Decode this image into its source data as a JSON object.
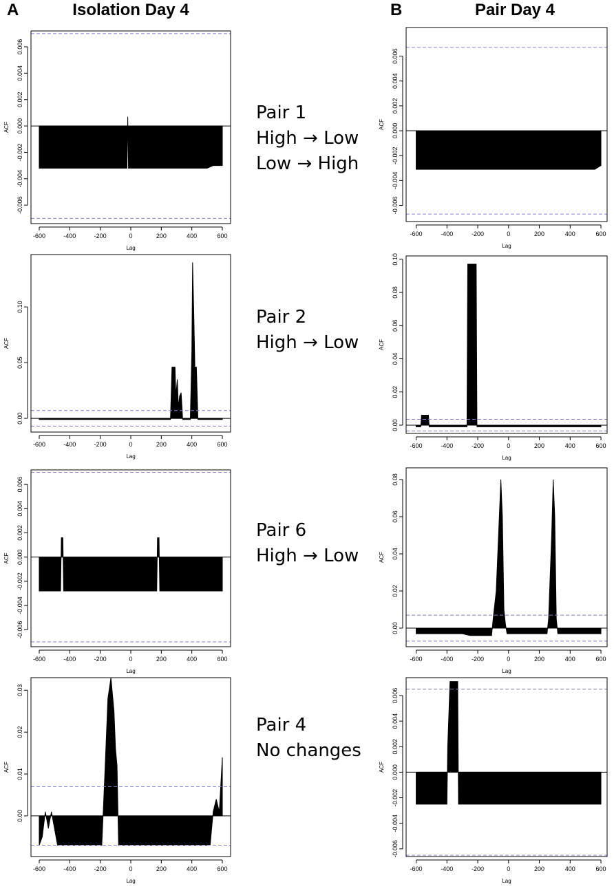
{
  "figure": {
    "panel_labels": [
      "A",
      "B"
    ],
    "column_titles": [
      "Isolation Day 4",
      "Pair Day 4"
    ],
    "annotations": [
      [
        "Pair 1",
        "High → Low",
        "Low → High"
      ],
      [
        "Pair 2",
        "High → Low"
      ],
      [
        "Pair 6",
        "High → Low"
      ],
      [
        "Pair 4",
        "No changes"
      ]
    ]
  },
  "chart_data": [
    {
      "type": "area",
      "x_label": "Lag",
      "y_label": "ACF",
      "color": "#000000",
      "ci_color": "#8080d0",
      "confidence_bound": 0.007,
      "x": [
        -600,
        -25,
        -20,
        -15,
        500,
        540,
        600
      ],
      "values": [
        -0.0032,
        -0.0032,
        0.0007,
        -0.0032,
        -0.0032,
        -0.003,
        -0.003
      ],
      "xlim": [
        -654,
        654
      ],
      "ylim": [
        -0.0074,
        0.0072
      ],
      "xticks": [
        -600,
        -400,
        -200,
        0,
        200,
        400,
        600
      ],
      "yticks": [
        -0.006,
        -0.004,
        -0.002,
        {
          "value": 0,
          "label": "0.000"
        },
        0.002,
        0.004,
        0.006
      ]
    },
    {
      "type": "area",
      "x_label": "Lag",
      "y_label": "ACF",
      "color": "#000000",
      "ci_color": "#8080d0",
      "confidence_bound": 0.007,
      "x": [
        -600,
        260,
        270,
        290,
        295,
        305,
        312,
        320,
        330,
        340,
        390,
        400,
        405,
        412,
        420,
        430,
        440,
        600
      ],
      "values": [
        -0.001,
        -0.001,
        0.046,
        0.046,
        0.02,
        0.035,
        0.01,
        0.02,
        0.023,
        -0.001,
        -0.001,
        0.06,
        0.14,
        0.1,
        0.046,
        0.046,
        -0.001,
        -0.001
      ],
      "xlim": [
        -654,
        654
      ],
      "ylim": [
        -0.0123,
        0.147
      ],
      "xticks": [
        -600,
        -400,
        -200,
        0,
        200,
        400,
        600
      ],
      "yticks": [
        {
          "value": 0,
          "label": "0.00"
        },
        0.05,
        {
          "value": 0.1,
          "label": "0.10"
        }
      ]
    },
    {
      "type": "area",
      "x_label": "Lag",
      "y_label": "ACF",
      "color": "#000000",
      "ci_color": "#8080d0",
      "confidence_bound": 0.007,
      "x": [
        -600,
        -460,
        -455,
        -445,
        -440,
        170,
        175,
        185,
        190,
        600
      ],
      "values": [
        -0.0028,
        -0.0028,
        0.0016,
        0.0016,
        -0.0028,
        -0.0028,
        0.0016,
        0.0016,
        -0.0028,
        -0.0028
      ],
      "xlim": [
        -654,
        654
      ],
      "ylim": [
        -0.0074,
        0.0072
      ],
      "xticks": [
        -600,
        -400,
        -200,
        0,
        200,
        400,
        600
      ],
      "yticks": [
        -0.006,
        -0.004,
        -0.002,
        {
          "value": 0,
          "label": "0.000"
        },
        0.002,
        0.004,
        0.006
      ]
    },
    {
      "type": "area",
      "x_label": "Lag",
      "y_label": "ACF",
      "color": "#000000",
      "ci_color": "#8080d0",
      "confidence_bound": 0.007,
      "x": [
        -600,
        -580,
        -560,
        -540,
        -520,
        -500,
        -480,
        -190,
        -170,
        -150,
        -130,
        -110,
        -100,
        -90,
        -80,
        520,
        540,
        560,
        580,
        600
      ],
      "values": [
        -0.007,
        -0.005,
        0.001,
        -0.003,
        0.001,
        -0.003,
        -0.007,
        -0.007,
        0.01,
        0.028,
        0.033,
        0.025,
        0.016,
        0.012,
        -0.007,
        -0.007,
        0.001,
        0.004,
        0.001,
        0.014
      ],
      "xlim": [
        -654,
        654
      ],
      "ylim": [
        -0.0097,
        0.033
      ],
      "xticks": [
        -600,
        -400,
        -200,
        0,
        200,
        400,
        600
      ],
      "yticks": [
        {
          "value": 0,
          "label": "0.00"
        },
        0.01,
        0.02,
        0.03
      ]
    },
    {
      "type": "area",
      "x_label": "Lag",
      "y_label": "ACF",
      "color": "#000000",
      "ci_color": "#8080d0",
      "confidence_bound": 0.0067,
      "x": [
        -600,
        -200,
        560,
        600
      ],
      "values": [
        -0.0031,
        -0.0031,
        -0.0031,
        -0.0028
      ],
      "xlim": [
        -665,
        640
      ],
      "ylim": [
        -0.0073,
        0.0083
      ],
      "xticks": [
        -600,
        -400,
        -200,
        0,
        200,
        400,
        600
      ],
      "yticks": [
        -0.006,
        -0.004,
        -0.002,
        {
          "value": 0,
          "label": "0.000"
        },
        0.002,
        0.004,
        0.006
      ]
    },
    {
      "type": "area",
      "x_label": "Lag",
      "y_label": "ACF",
      "color": "#000000",
      "ci_color": "#8080d0",
      "confidence_bound": 0.0035,
      "x": [
        -600,
        -570,
        -565,
        -520,
        -515,
        -270,
        -265,
        -210,
        -205,
        600
      ],
      "values": [
        -0.001,
        -0.001,
        0.006,
        0.006,
        -0.001,
        -0.001,
        0.097,
        0.097,
        -0.001,
        -0.001
      ],
      "xlim": [
        -665,
        640
      ],
      "ylim": [
        -0.005,
        0.102
      ],
      "xticks": [
        -600,
        -400,
        -200,
        0,
        200,
        400,
        600
      ],
      "yticks": [
        {
          "value": 0,
          "label": "0.00"
        },
        0.02,
        0.04,
        0.06,
        0.08,
        {
          "value": 0.1,
          "label": "0.10"
        }
      ]
    },
    {
      "type": "area",
      "x_label": "Lag",
      "y_label": "ACF",
      "color": "#000000",
      "ci_color": "#8080d0",
      "confidence_bound": 0.007,
      "x": [
        -600,
        -300,
        -250,
        -110,
        -100,
        -80,
        -60,
        -50,
        -40,
        -30,
        -20,
        -10,
        250,
        260,
        280,
        290,
        300,
        310,
        320,
        600
      ],
      "values": [
        -0.003,
        -0.003,
        -0.004,
        -0.004,
        0.005,
        0.02,
        0.06,
        0.08,
        0.06,
        0.01,
        0.002,
        -0.003,
        -0.003,
        0.005,
        0.05,
        0.08,
        0.06,
        0.005,
        -0.003,
        -0.003
      ],
      "xlim": [
        -665,
        640
      ],
      "ylim": [
        -0.01,
        0.0863
      ],
      "xticks": [
        -600,
        -400,
        -200,
        0,
        200,
        400,
        600
      ],
      "yticks": [
        {
          "value": 0,
          "label": "0.00"
        },
        0.02,
        0.04,
        0.06,
        0.08
      ]
    },
    {
      "type": "area",
      "x_label": "Lag",
      "y_label": "ACF",
      "color": "#000000",
      "ci_color": "#8080d0",
      "confidence_bound": 0.0065,
      "x": [
        -600,
        -400,
        -395,
        -380,
        -330,
        -325,
        600
      ],
      "values": [
        -0.0025,
        -0.0025,
        0.002,
        0.0071,
        0.0071,
        -0.0025,
        -0.0025
      ],
      "xlim": [
        -665,
        640
      ],
      "ylim": [
        -0.0066,
        0.0074
      ],
      "xticks": [
        -600,
        -400,
        -200,
        0,
        200,
        400,
        600
      ],
      "yticks": [
        -0.006,
        -0.004,
        -0.002,
        {
          "value": 0,
          "label": "0.000"
        },
        0.002,
        0.004,
        0.006
      ]
    }
  ]
}
